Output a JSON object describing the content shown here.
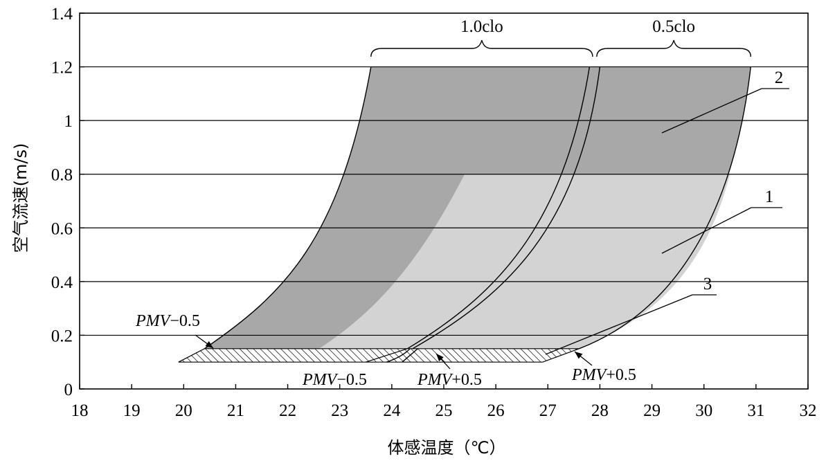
{
  "chart_data": {
    "type": "area",
    "xlabel": "体感温度（℃）",
    "ylabel": "空气流速(m/s)",
    "xlim": [
      18,
      32
    ],
    "ylim": [
      0,
      1.4
    ],
    "x_ticks": [
      18,
      19,
      20,
      21,
      22,
      23,
      24,
      25,
      26,
      27,
      28,
      29,
      30,
      31,
      32
    ],
    "y_ticks": [
      0,
      0.2,
      0.4,
      0.6,
      0.8,
      1,
      1.2,
      1.4
    ],
    "y_tick_labels": [
      "0",
      "0.2",
      "0.4",
      "0.6",
      "0.8",
      "1",
      "1.2",
      "1.4"
    ],
    "grid": "horizontal",
    "colors": {
      "region_2": "#a8a8a8",
      "region_1": "#d3d3d3",
      "hatch": "#000000"
    },
    "clothing_labels": [
      "1.0clo",
      "0.5clo"
    ],
    "clothing_ranges": [
      [
        23.6,
        27.9
      ],
      [
        27.9,
        30.9
      ]
    ],
    "regions": [
      {
        "name": "2",
        "description_boundary_left": [
          [
            20.4,
            0.15
          ],
          [
            21.3,
            0.3
          ],
          [
            22.3,
            0.5
          ],
          [
            22.9,
            0.7
          ],
          [
            23.3,
            0.95
          ],
          [
            23.6,
            1.2
          ]
        ],
        "description_boundary_right": [
          [
            27.6,
            0.15
          ],
          [
            28.7,
            0.25
          ],
          [
            29.6,
            0.4
          ],
          [
            30.2,
            0.6
          ],
          [
            30.5,
            0.8
          ],
          [
            30.8,
            1.0
          ],
          [
            30.9,
            1.2
          ]
        ]
      },
      {
        "name": "1",
        "description_boundary_left": [
          [
            22.6,
            0.15
          ],
          [
            23.8,
            0.35
          ],
          [
            24.8,
            0.65
          ],
          [
            25.4,
            0.8
          ]
        ],
        "y_top": 0.8
      },
      {
        "name": "3",
        "y_range": [
          0.1,
          0.15
        ],
        "x_range_bottom": [
          19.9,
          26.9
        ],
        "x_range_top": [
          20.4,
          27.6
        ]
      }
    ],
    "annotations": [
      {
        "text": "PMV−0.5",
        "italic_part": "PMV",
        "value_part": "−0.5"
      },
      {
        "text": "PMV−0.5",
        "italic_part": "PMV",
        "value_part": "−0.5"
      },
      {
        "text": "PMV+0.5",
        "italic_part": "PMV",
        "value_part": "+0.5"
      },
      {
        "text": "PMV+0.5",
        "italic_part": "PMV",
        "value_part": "+0.5"
      }
    ],
    "labels": [
      "1",
      "2",
      "3"
    ]
  }
}
